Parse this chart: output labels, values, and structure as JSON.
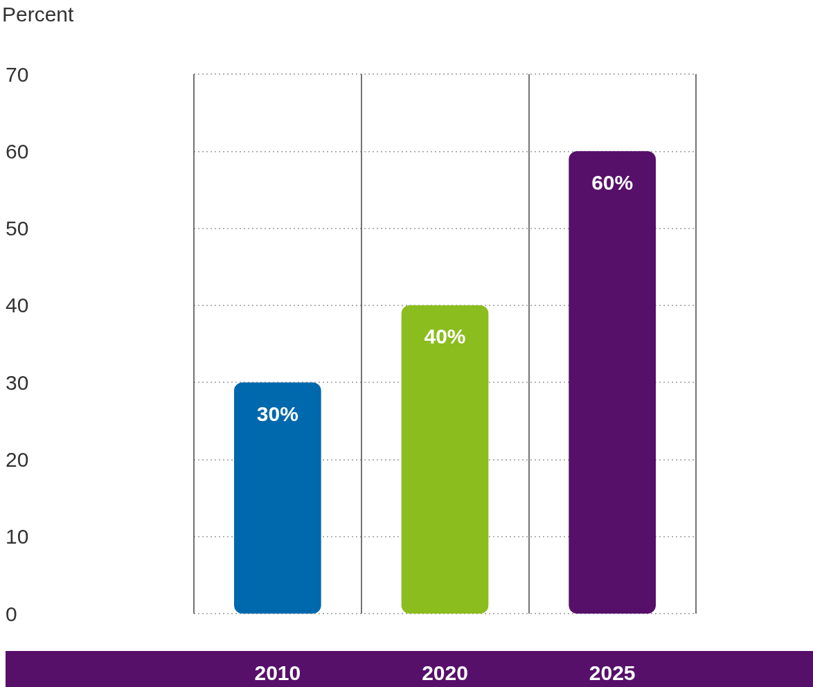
{
  "chart_data": {
    "type": "bar",
    "ylabel": "Percent",
    "categories": [
      "2010",
      "2020",
      "2025"
    ],
    "values": [
      30,
      40,
      60
    ],
    "colors": [
      "#0068ad",
      "#8bbd1e",
      "#56106a"
    ],
    "value_labels": [
      "30%",
      "40%",
      "60%"
    ],
    "ylim": [
      0,
      70
    ],
    "yticks": [
      0,
      10,
      20,
      30,
      40,
      50,
      60,
      70
    ],
    "grid": true
  }
}
